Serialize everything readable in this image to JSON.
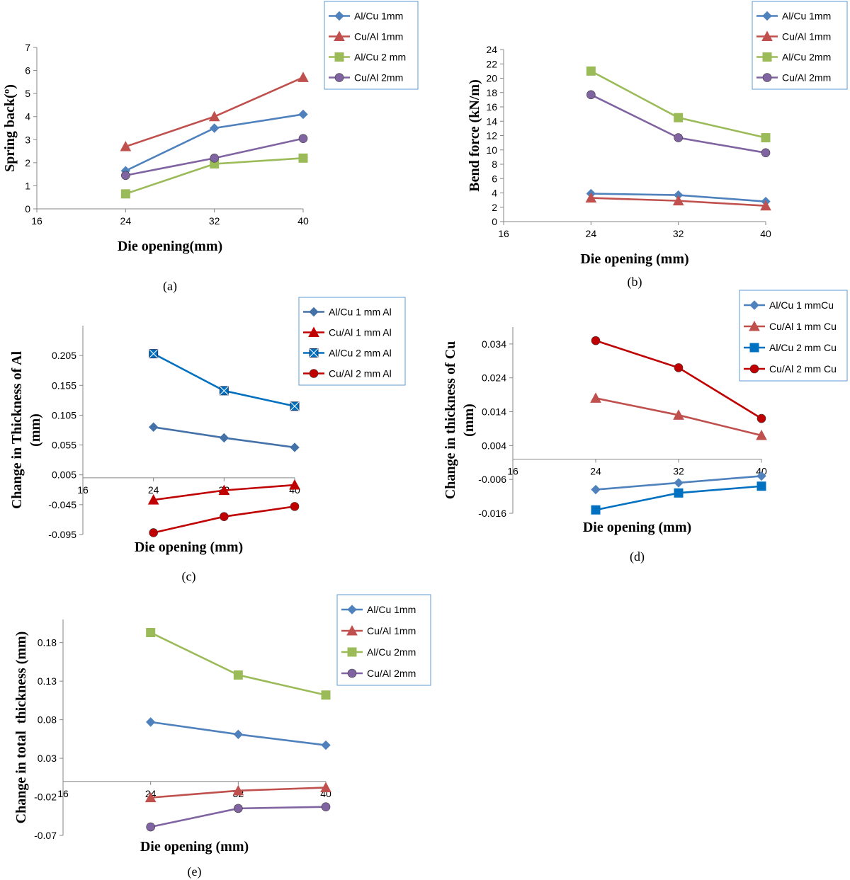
{
  "chart_data": [
    {
      "type": "line",
      "caption": "(a)",
      "xlabel": "Die opening(mm)",
      "ylabel": "Spring back(º)",
      "x_ticks": [
        "16",
        "24",
        "32",
        "40"
      ],
      "y_ticks": [
        "0",
        "1",
        "2",
        "3",
        "4",
        "5",
        "6",
        "7"
      ],
      "xlim": [
        16,
        40
      ],
      "ylim": [
        0,
        7
      ],
      "x": [
        24,
        32,
        40
      ],
      "series": [
        {
          "name": "Al/Cu 1mm",
          "values": [
            1.65,
            3.5,
            4.1
          ],
          "color": "#4f81bd",
          "marker": "diamond"
        },
        {
          "name": "Cu/Al 1mm",
          "values": [
            2.7,
            4.0,
            5.7
          ],
          "color": "#c0504d",
          "marker": "triangle"
        },
        {
          "name": "Al/Cu 2 mm",
          "values": [
            0.65,
            1.95,
            2.2
          ],
          "color": "#9bbb59",
          "marker": "square"
        },
        {
          "name": "Cu/Al 2mm",
          "values": [
            1.45,
            2.2,
            3.05
          ],
          "color": "#8064a2",
          "marker": "circle"
        }
      ]
    },
    {
      "type": "line",
      "caption": "(b)",
      "xlabel": "Die opening (mm)",
      "ylabel": "Bend force (kN/m)",
      "x_ticks": [
        "16",
        "24",
        "32",
        "40"
      ],
      "y_ticks": [
        "0",
        "2",
        "4",
        "6",
        "8",
        "10",
        "12",
        "14",
        "16",
        "18",
        "20",
        "22",
        "24"
      ],
      "xlim": [
        16,
        40
      ],
      "ylim": [
        0,
        24
      ],
      "x": [
        24,
        32,
        40
      ],
      "series": [
        {
          "name": "Al/Cu 1mm",
          "values": [
            3.9,
            3.7,
            2.8
          ],
          "color": "#4f81bd",
          "marker": "diamond"
        },
        {
          "name": "Cu/Al 1mm",
          "values": [
            3.3,
            2.9,
            2.2
          ],
          "color": "#c0504d",
          "marker": "triangle"
        },
        {
          "name": "Al/Cu 2mm",
          "values": [
            21.0,
            14.5,
            11.7
          ],
          "color": "#9bbb59",
          "marker": "square"
        },
        {
          "name": "Cu/Al 2mm",
          "values": [
            17.7,
            11.7,
            9.6
          ],
          "color": "#8064a2",
          "marker": "circle"
        }
      ]
    },
    {
      "type": "line",
      "caption": "(c)",
      "xlabel": "Die opening (mm)",
      "ylabel": "Change in Thickness of Al (mm)",
      "x_ticks": [
        "16",
        "24",
        "32",
        "40"
      ],
      "y_ticks": [
        "-0.095",
        "-0.045",
        "0.005",
        "0.055",
        "0.105",
        "0.155",
        "0.205"
      ],
      "xlim": [
        16,
        40
      ],
      "ylim": [
        -0.095,
        0.255
      ],
      "x": [
        24,
        32,
        40
      ],
      "series": [
        {
          "name": "Al/Cu 1 mm Al",
          "values": [
            0.085,
            0.067,
            0.051
          ],
          "color": "#4472a8",
          "marker": "diamond"
        },
        {
          "name": "Cu/Al 1 mm Al",
          "values": [
            -0.037,
            -0.021,
            -0.012
          ],
          "color": "#c00000",
          "marker": "triangle"
        },
        {
          "name": "Al/Cu 2 mm Al",
          "values": [
            0.208,
            0.146,
            0.12
          ],
          "color": "#0070c0",
          "marker": "square-x"
        },
        {
          "name": "Cu/Al 2 mm Al",
          "values": [
            -0.092,
            -0.065,
            -0.048
          ],
          "color": "#c00000",
          "marker": "circle"
        }
      ]
    },
    {
      "type": "line",
      "caption": "(d)",
      "xlabel": "Die opening (mm)",
      "ylabel": "Change in thickness of Cu (mm)",
      "x_ticks": [
        "16",
        "24",
        "32",
        "40"
      ],
      "y_ticks": [
        "-0.016",
        "-0.006",
        "0.004",
        "0.014",
        "0.024",
        "0.034"
      ],
      "xlim": [
        16,
        40
      ],
      "ylim": [
        -0.016,
        0.039
      ],
      "x": [
        24,
        32,
        40
      ],
      "series": [
        {
          "name": "Al/Cu 1 mmCu",
          "values": [
            -0.009,
            -0.007,
            -0.005
          ],
          "color": "#4f81bd",
          "marker": "diamond"
        },
        {
          "name": "Cu/Al 1 mm Cu",
          "values": [
            0.018,
            0.013,
            0.007
          ],
          "color": "#c0504d",
          "marker": "triangle"
        },
        {
          "name": "Al/Cu 2 mm Cu",
          "values": [
            -0.015,
            -0.01,
            -0.008
          ],
          "color": "#0070c0",
          "marker": "square"
        },
        {
          "name": "Cu/Al 2 mm Cu",
          "values": [
            0.035,
            0.027,
            0.012
          ],
          "color": "#c00000",
          "marker": "circle"
        }
      ]
    },
    {
      "type": "line",
      "caption": "(e)",
      "xlabel": "Die opening (mm)",
      "ylabel": "Change in total  thickness (mm)",
      "x_ticks": [
        "16",
        "24",
        "32",
        "40"
      ],
      "y_ticks": [
        "-0.07",
        "-0.02",
        "0.03",
        "0.08",
        "0.13",
        "0.18"
      ],
      "xlim": [
        16,
        40
      ],
      "ylim": [
        -0.07,
        0.21
      ],
      "x": [
        24,
        32,
        40
      ],
      "series": [
        {
          "name": "Al/Cu 1mm",
          "values": [
            0.077,
            0.061,
            0.047
          ],
          "color": "#4f81bd",
          "marker": "diamond"
        },
        {
          "name": "Cu/Al 1mm",
          "values": [
            -0.021,
            -0.012,
            -0.008
          ],
          "color": "#c0504d",
          "marker": "triangle"
        },
        {
          "name": "Al/Cu 2mm",
          "values": [
            0.193,
            0.138,
            0.112
          ],
          "color": "#9bbb59",
          "marker": "square"
        },
        {
          "name": "Cu/Al 2mm",
          "values": [
            -0.059,
            -0.035,
            -0.033
          ],
          "color": "#8064a2",
          "marker": "circle"
        }
      ]
    }
  ]
}
